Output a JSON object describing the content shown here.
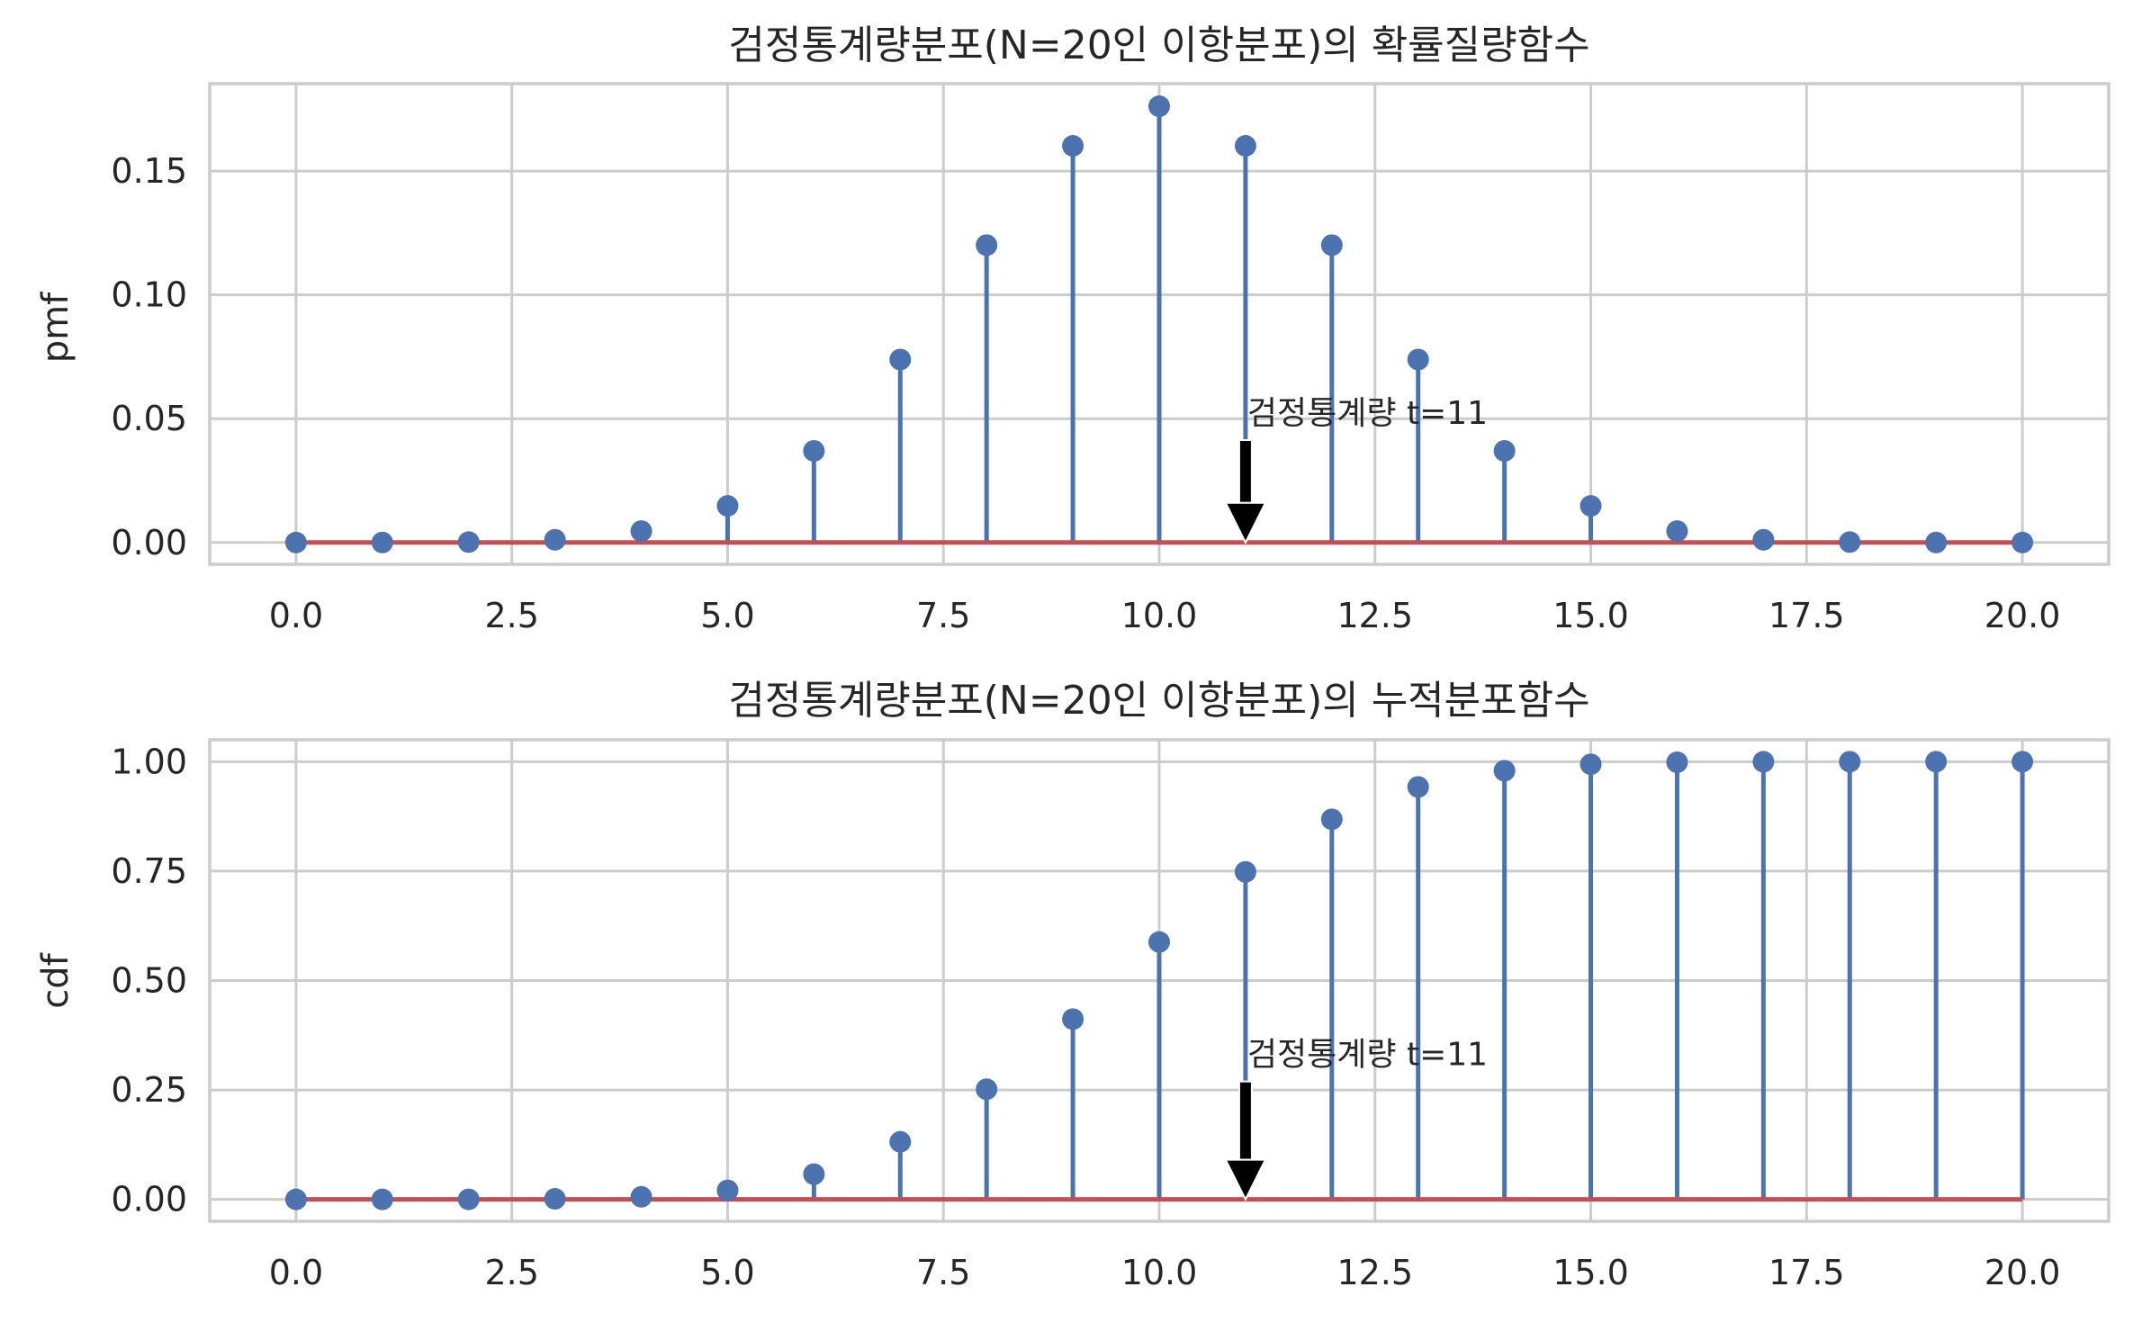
{
  "chart_data": [
    {
      "type": "stem",
      "title": "검정통계량분포(N=20인 이항분포)의 확률질량함수",
      "xlabel": "",
      "ylabel": "pmf",
      "xlim": [
        -1.0,
        21.0
      ],
      "ylim": [
        -0.0088,
        0.1853
      ],
      "xticks": [
        "0.0",
        "2.5",
        "5.0",
        "7.5",
        "10.0",
        "12.5",
        "15.0",
        "17.5",
        "20.0"
      ],
      "yticks": [
        "0.00",
        "0.05",
        "0.10",
        "0.15"
      ],
      "grid": true,
      "x": [
        0,
        1,
        2,
        3,
        4,
        5,
        6,
        7,
        8,
        9,
        10,
        11,
        12,
        13,
        14,
        15,
        16,
        17,
        18,
        19,
        20
      ],
      "values": [
        1e-06,
        1.9e-05,
        0.00018,
        0.0011,
        0.0046,
        0.0148,
        0.037,
        0.0739,
        0.1201,
        0.1602,
        0.1762,
        0.1602,
        0.1201,
        0.0739,
        0.037,
        0.0148,
        0.0046,
        0.0011,
        0.00018,
        1.9e-05,
        1e-06
      ],
      "annotation": {
        "text": "검정통계량 t=11",
        "x": 11,
        "y": 0,
        "text_y": 0.045
      }
    },
    {
      "type": "stem",
      "title": "검정통계량분포(N=20인 이항분포)의 누적분포함수",
      "xlabel": "",
      "ylabel": "cdf",
      "xlim": [
        -1.0,
        21.0
      ],
      "ylim": [
        -0.05,
        1.05
      ],
      "xticks": [
        "0.0",
        "2.5",
        "5.0",
        "7.5",
        "10.0",
        "12.5",
        "15.0",
        "17.5",
        "20.0"
      ],
      "yticks": [
        "0.00",
        "0.25",
        "0.50",
        "0.75",
        "1.00"
      ],
      "grid": true,
      "x": [
        0,
        1,
        2,
        3,
        4,
        5,
        6,
        7,
        8,
        9,
        10,
        11,
        12,
        13,
        14,
        15,
        16,
        17,
        18,
        19,
        20
      ],
      "values": [
        1e-06,
        2e-05,
        0.0002,
        0.0013,
        0.0059,
        0.0207,
        0.0577,
        0.1316,
        0.2517,
        0.4119,
        0.5881,
        0.7483,
        0.8684,
        0.9423,
        0.9793,
        0.9941,
        0.9987,
        0.9998,
        1.0,
        1.0,
        1.0
      ],
      "annotation": {
        "text": "검정통계량 t=11",
        "x": 11,
        "y": 0,
        "text_y": 0.29
      }
    }
  ]
}
